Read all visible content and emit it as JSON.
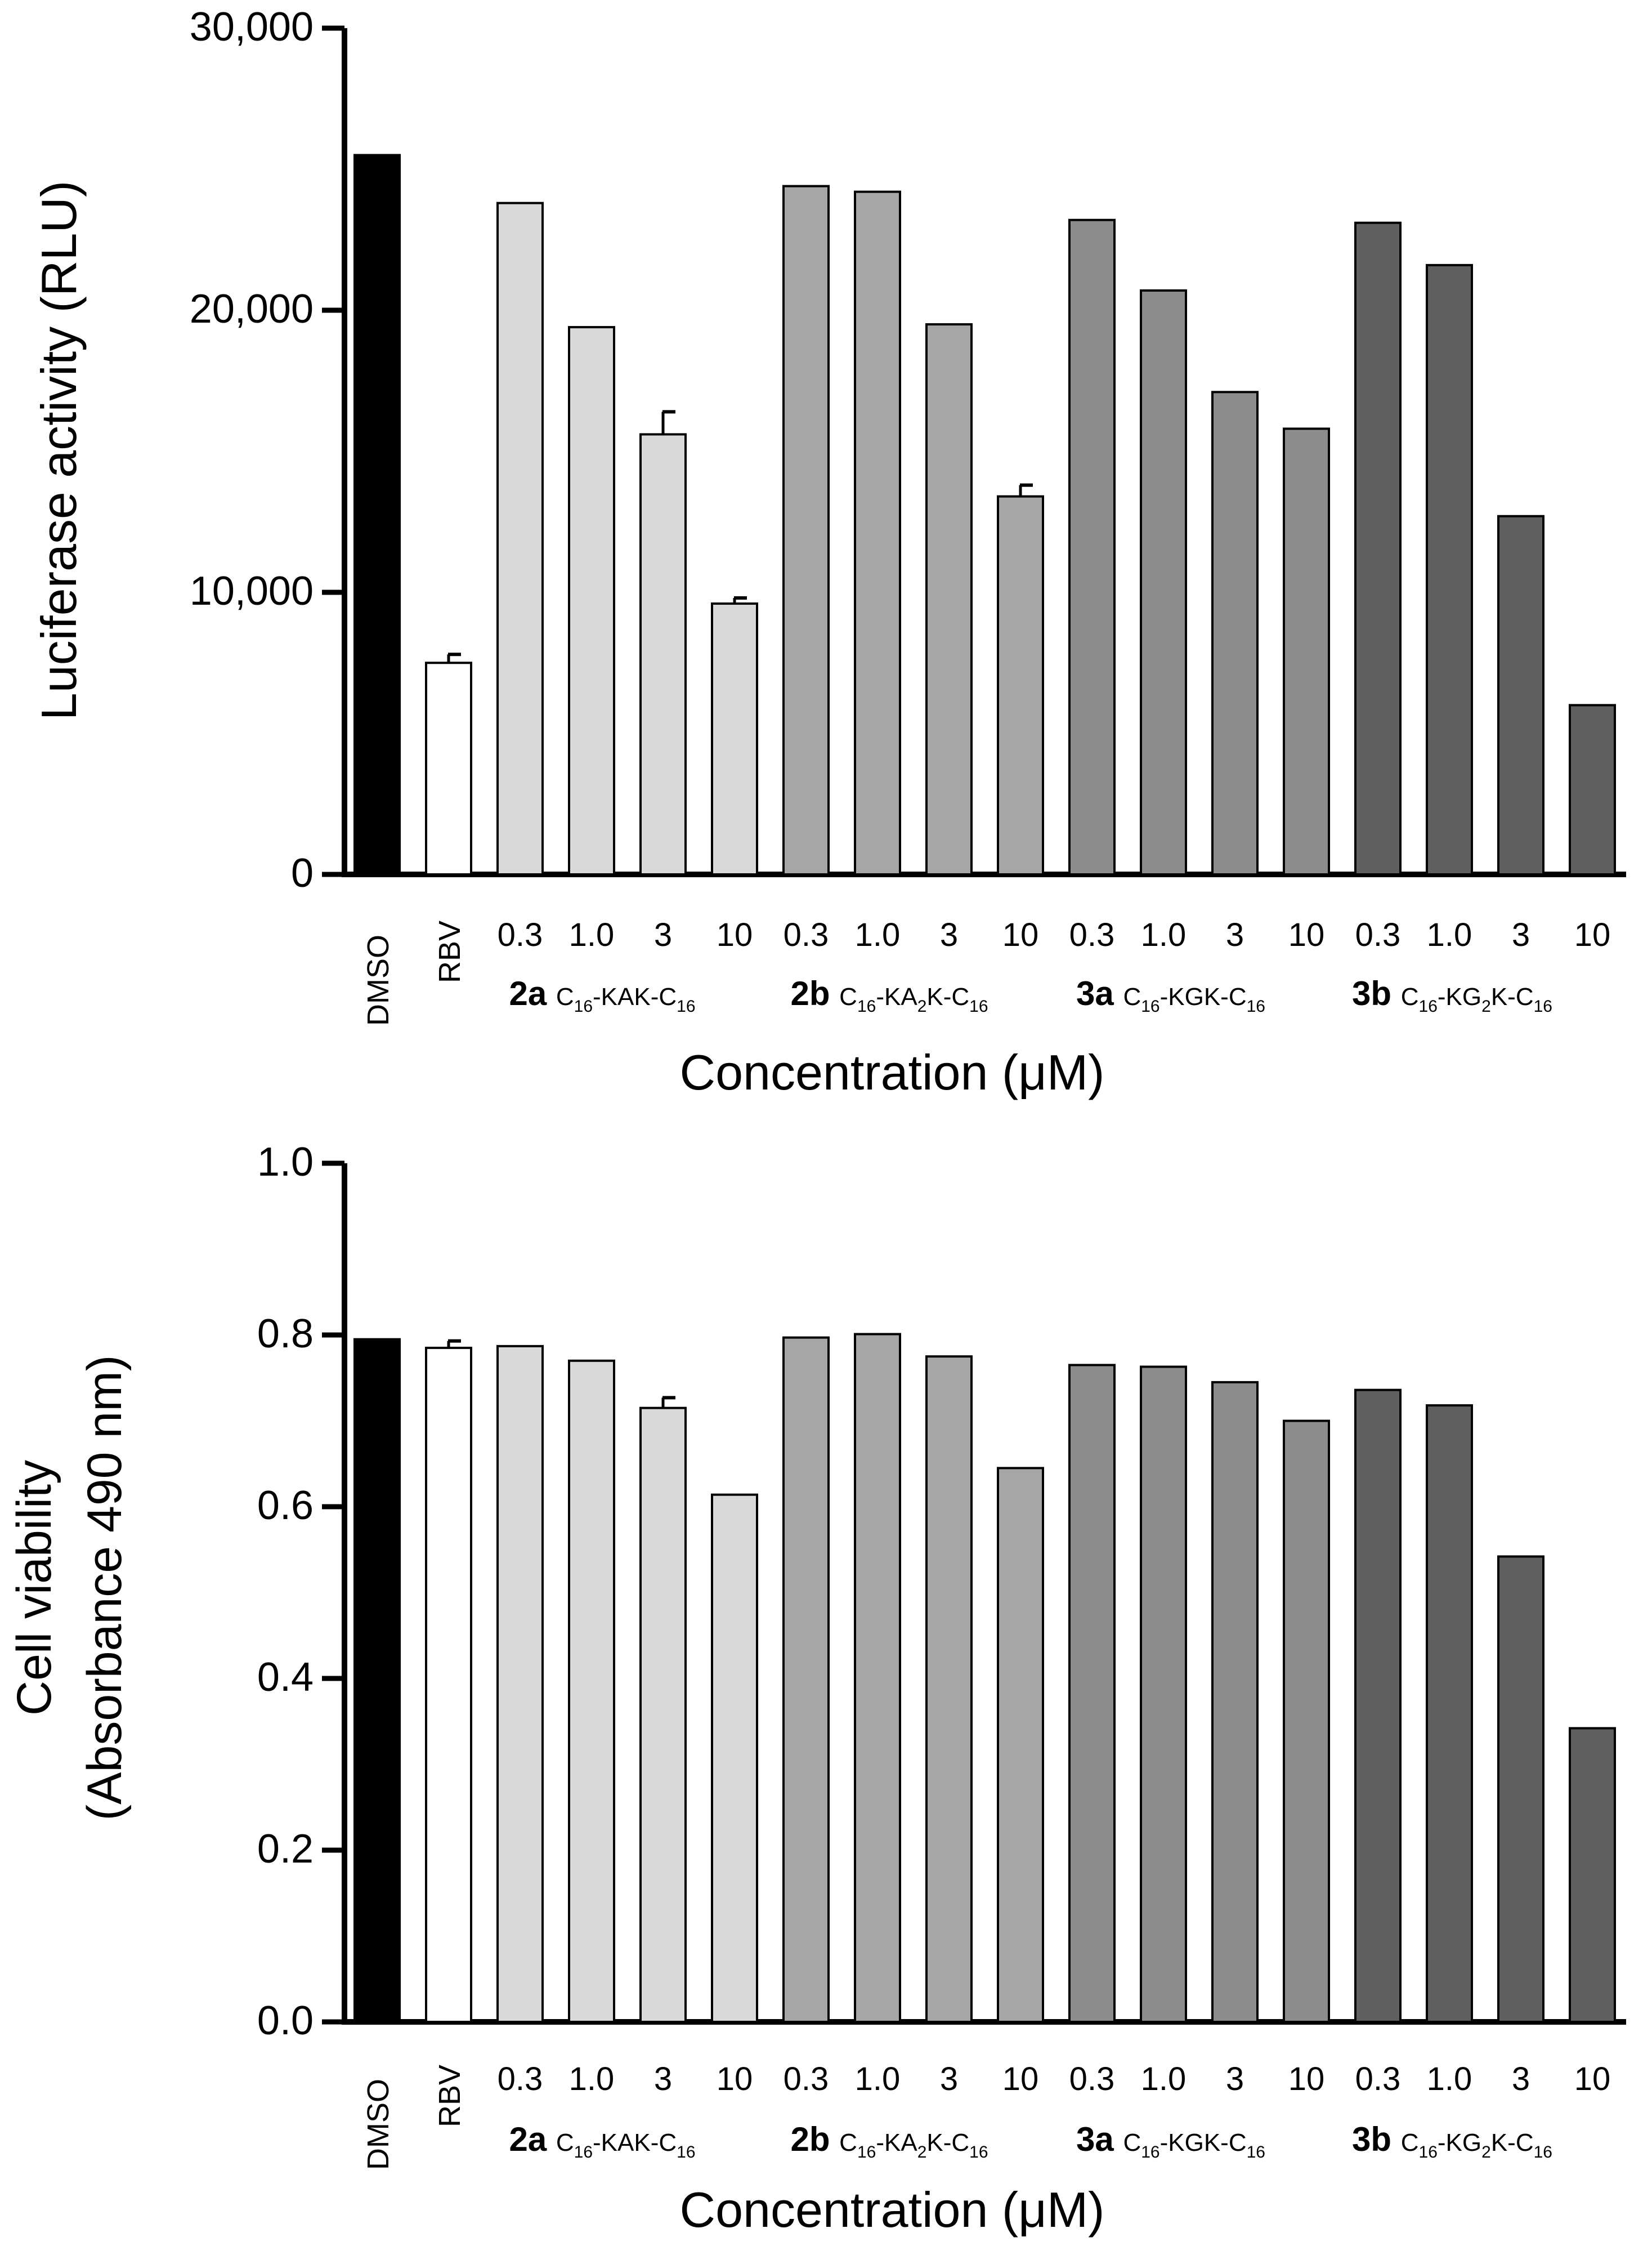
{
  "chart_data": [
    {
      "type": "bar",
      "ylabel": "Luciferase activity (RLU)",
      "xlabel": "Concentration (μM)",
      "ylim": [
        0,
        30000
      ],
      "yticks": [
        "0",
        "10,000",
        "20,000",
        "30,000"
      ],
      "ytick_values": [
        0,
        10000,
        20000,
        30000
      ],
      "categories": [
        "DMSO",
        "RBV",
        "0.3",
        "1.0",
        "3",
        "10",
        "0.3",
        "1.0",
        "3",
        "10",
        "0.3",
        "1.0",
        "3",
        "10",
        "0.3",
        "1.0",
        "3",
        "10"
      ],
      "values": [
        25500,
        7500,
        23800,
        19400,
        15600,
        9600,
        24400,
        24200,
        19500,
        13400,
        23200,
        20700,
        17100,
        15800,
        23100,
        21600,
        12700,
        6000
      ],
      "errors": [
        0,
        300,
        0,
        0,
        800,
        200,
        0,
        0,
        0,
        400,
        0,
        0,
        0,
        0,
        0,
        0,
        0,
        0
      ]
    },
    {
      "type": "bar",
      "ylabel_line1": "Cell viability",
      "ylabel_line2": "(Absorbance 490 nm)",
      "xlabel": "Concentration (μM)",
      "ylim": [
        0,
        1.0
      ],
      "yticks": [
        "0.0",
        "0.2",
        "0.4",
        "0.6",
        "0.8",
        "1.0"
      ],
      "ytick_values": [
        0,
        0.2,
        0.4,
        0.6,
        0.8,
        1.0
      ],
      "categories": [
        "DMSO",
        "RBV",
        "0.3",
        "1.0",
        "3",
        "10",
        "0.3",
        "1.0",
        "3",
        "10",
        "0.3",
        "1.0",
        "3",
        "10",
        "0.3",
        "1.0",
        "3",
        "10"
      ],
      "values": [
        0.795,
        0.785,
        0.787,
        0.77,
        0.715,
        0.614,
        0.797,
        0.801,
        0.775,
        0.645,
        0.765,
        0.763,
        0.745,
        0.7,
        0.736,
        0.718,
        0.542,
        0.342
      ],
      "errors": [
        0,
        0.008,
        0,
        0,
        0.012,
        0,
        0,
        0,
        0,
        0,
        0,
        0,
        0,
        0,
        0,
        0,
        0,
        0
      ]
    }
  ],
  "groups": [
    {
      "id": "2a",
      "name": "C16-KAK-C16",
      "parts": [
        "C",
        "16",
        "-KAK-C",
        "16"
      ],
      "color": "#d9d9d9"
    },
    {
      "id": "2b",
      "name": "C16-KA2K-C16",
      "parts": [
        "C",
        "16",
        "-KA",
        "2",
        "K-C",
        "16"
      ],
      "color": "#a6a6a6"
    },
    {
      "id": "3a",
      "name": "C16-KGK-C16",
      "parts": [
        "C",
        "16",
        "-KGK-C",
        "16"
      ],
      "color": "#8c8c8c"
    },
    {
      "id": "3b",
      "name": "C16-KG2K-C16",
      "parts": [
        "C",
        "16",
        "-KG",
        "2",
        "K-C",
        "16"
      ],
      "color": "#5f5f5f"
    }
  ],
  "bar_colors": [
    "#000000",
    "#ffffff",
    "#d9d9d9",
    "#d9d9d9",
    "#d9d9d9",
    "#d9d9d9",
    "#a6a6a6",
    "#a6a6a6",
    "#a6a6a6",
    "#a6a6a6",
    "#8c8c8c",
    "#8c8c8c",
    "#8c8c8c",
    "#8c8c8c",
    "#5f5f5f",
    "#5f5f5f",
    "#5f5f5f",
    "#5f5f5f"
  ]
}
